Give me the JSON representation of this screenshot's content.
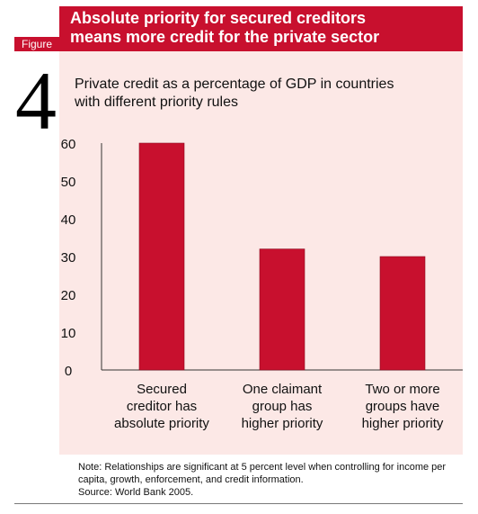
{
  "header": {
    "figure_label": "Figure",
    "figure_number": "4",
    "title_line1": "Absolute priority for secured creditors",
    "title_line2": "means more credit for the private sector"
  },
  "colors": {
    "accent": "#c8102e",
    "panel_background": "#fce8e6"
  },
  "chart_data": {
    "type": "bar",
    "title_line1": "Private credit as a percentage of GDP in countries",
    "title_line2": "with different priority rules",
    "categories": [
      [
        "Secured",
        "creditor has",
        "absolute priority"
      ],
      [
        "One claimant",
        "group has",
        "higher priority"
      ],
      [
        "Two or more",
        "groups have",
        "higher priority"
      ]
    ],
    "values": [
      60,
      32,
      30
    ],
    "ylim": [
      0,
      60
    ],
    "yticks": [
      0,
      10,
      20,
      30,
      40,
      50,
      60
    ],
    "xlabel": "",
    "ylabel": "",
    "grid": false,
    "bar_color": "#c8102e"
  },
  "note": {
    "line1": "Note: Relationships are significant at 5 percent level when controlling for income per",
    "line2": "capita, growth, enforcement, and credit information.",
    "line3": "Source: World Bank 2005."
  }
}
